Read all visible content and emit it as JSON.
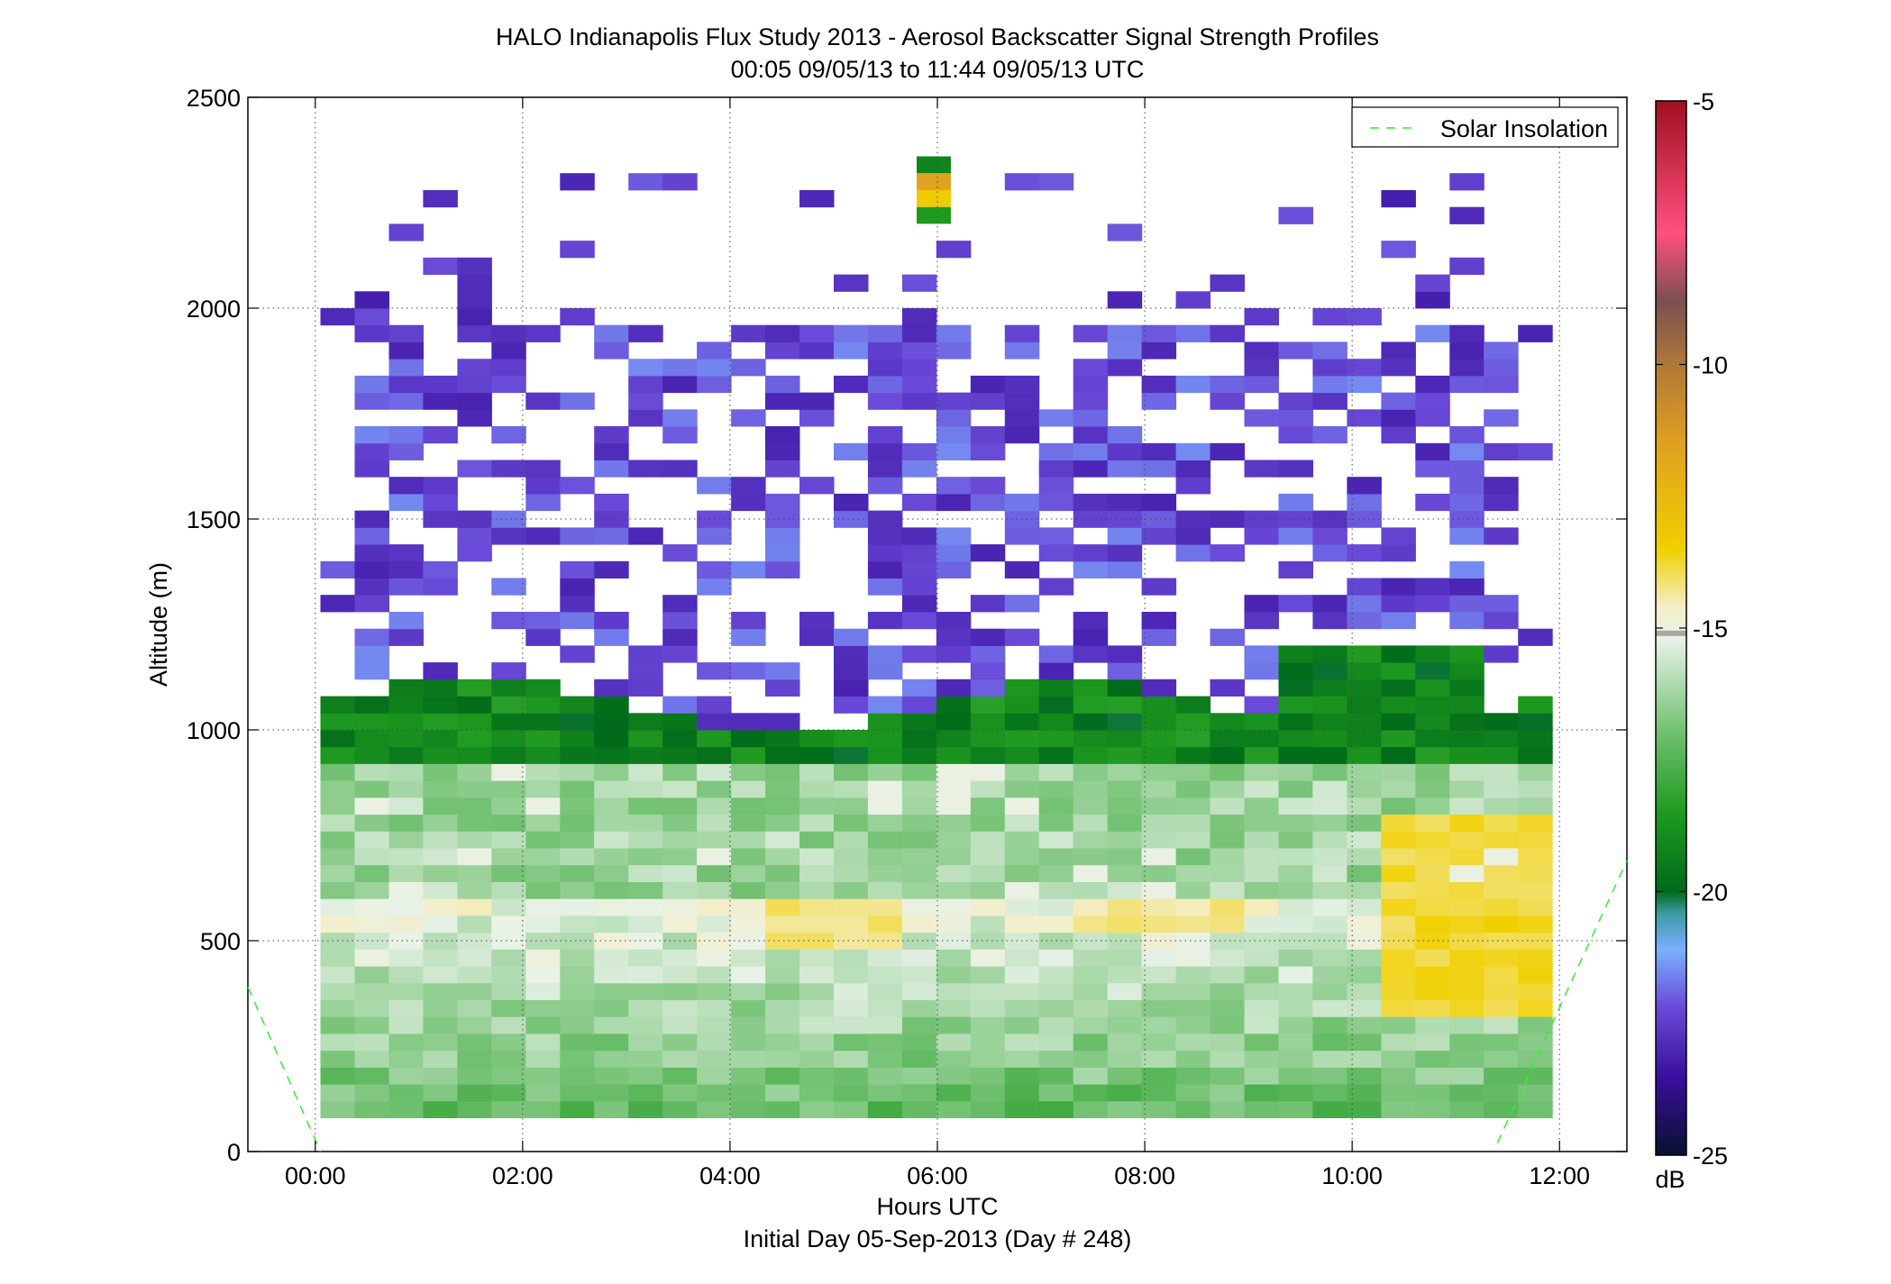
{
  "chart_data": {
    "type": "heatmap",
    "title": "HALO Indianapolis Flux Study 2013 - Aerosol Backscatter Signal Strength Profiles",
    "subtitle": "00:05 09/05/13 to 11:44 09/05/13  UTC",
    "xlabel": "Hours UTC",
    "ylabel": "Altitude (m)",
    "footer": "Initial Day 05-Sep-2013 (Day # 248)",
    "x_ticks": [
      "00:00",
      "02:00",
      "04:00",
      "06:00",
      "08:00",
      "10:00",
      "12:00"
    ],
    "x_tick_hours": [
      0,
      2,
      4,
      6,
      8,
      10,
      12
    ],
    "xlim_hours": [
      -0.65,
      12.65
    ],
    "y_ticks": [
      0,
      500,
      1000,
      1500,
      2000,
      2500
    ],
    "ylim": [
      0,
      2500
    ],
    "grid": true,
    "legend": {
      "location": "top-right",
      "entries": [
        {
          "label": "Solar Insolation",
          "style": "dashed",
          "color": "#33ee33"
        }
      ]
    },
    "solar_insolation_line": {
      "segment_1": {
        "x_hours": [
          -0.65,
          0.05
        ],
        "y": [
          390,
          0
        ]
      },
      "segment_2": {
        "x_hours": [
          11.4,
          12.65
        ],
        "y": [
          20,
          690
        ]
      }
    },
    "colorbar": {
      "label": "dB",
      "range": [
        -25,
        -5
      ],
      "ticks": [
        -25,
        -20,
        -15,
        -10,
        -5
      ],
      "colormap_stops": [
        {
          "v": -25,
          "color": "#0a1030"
        },
        {
          "v": -23.5,
          "color": "#3a10a0"
        },
        {
          "v": -22.2,
          "color": "#6a4ad8"
        },
        {
          "v": -21.1,
          "color": "#7ab0ff"
        },
        {
          "v": -20.4,
          "color": "#3a9aa0"
        },
        {
          "v": -20,
          "color": "#006a1a"
        },
        {
          "v": -18.5,
          "color": "#1f9a1f"
        },
        {
          "v": -17,
          "color": "#6fc06f"
        },
        {
          "v": -15.2,
          "color": "#e8f2e8"
        },
        {
          "v": -14.6,
          "color": "#f4eec8"
        },
        {
          "v": -13.5,
          "color": "#f0d000"
        },
        {
          "v": -11.5,
          "color": "#e0a020"
        },
        {
          "v": -10,
          "color": "#b07838"
        },
        {
          "v": -8.8,
          "color": "#7a5050"
        },
        {
          "v": -7.5,
          "color": "#ff5080"
        },
        {
          "v": -5,
          "color": "#a01020"
        }
      ],
      "gray_band_value": -15.1
    },
    "grid_resolution": {
      "x_step_hours": 0.33,
      "y_step_m": 40,
      "x0_hours": 0.05,
      "y0_m": 80
    },
    "notes_on_encoding": "rows are altitude bins from 80 m upward (40 m each); values in dB; null = no signal"
  }
}
